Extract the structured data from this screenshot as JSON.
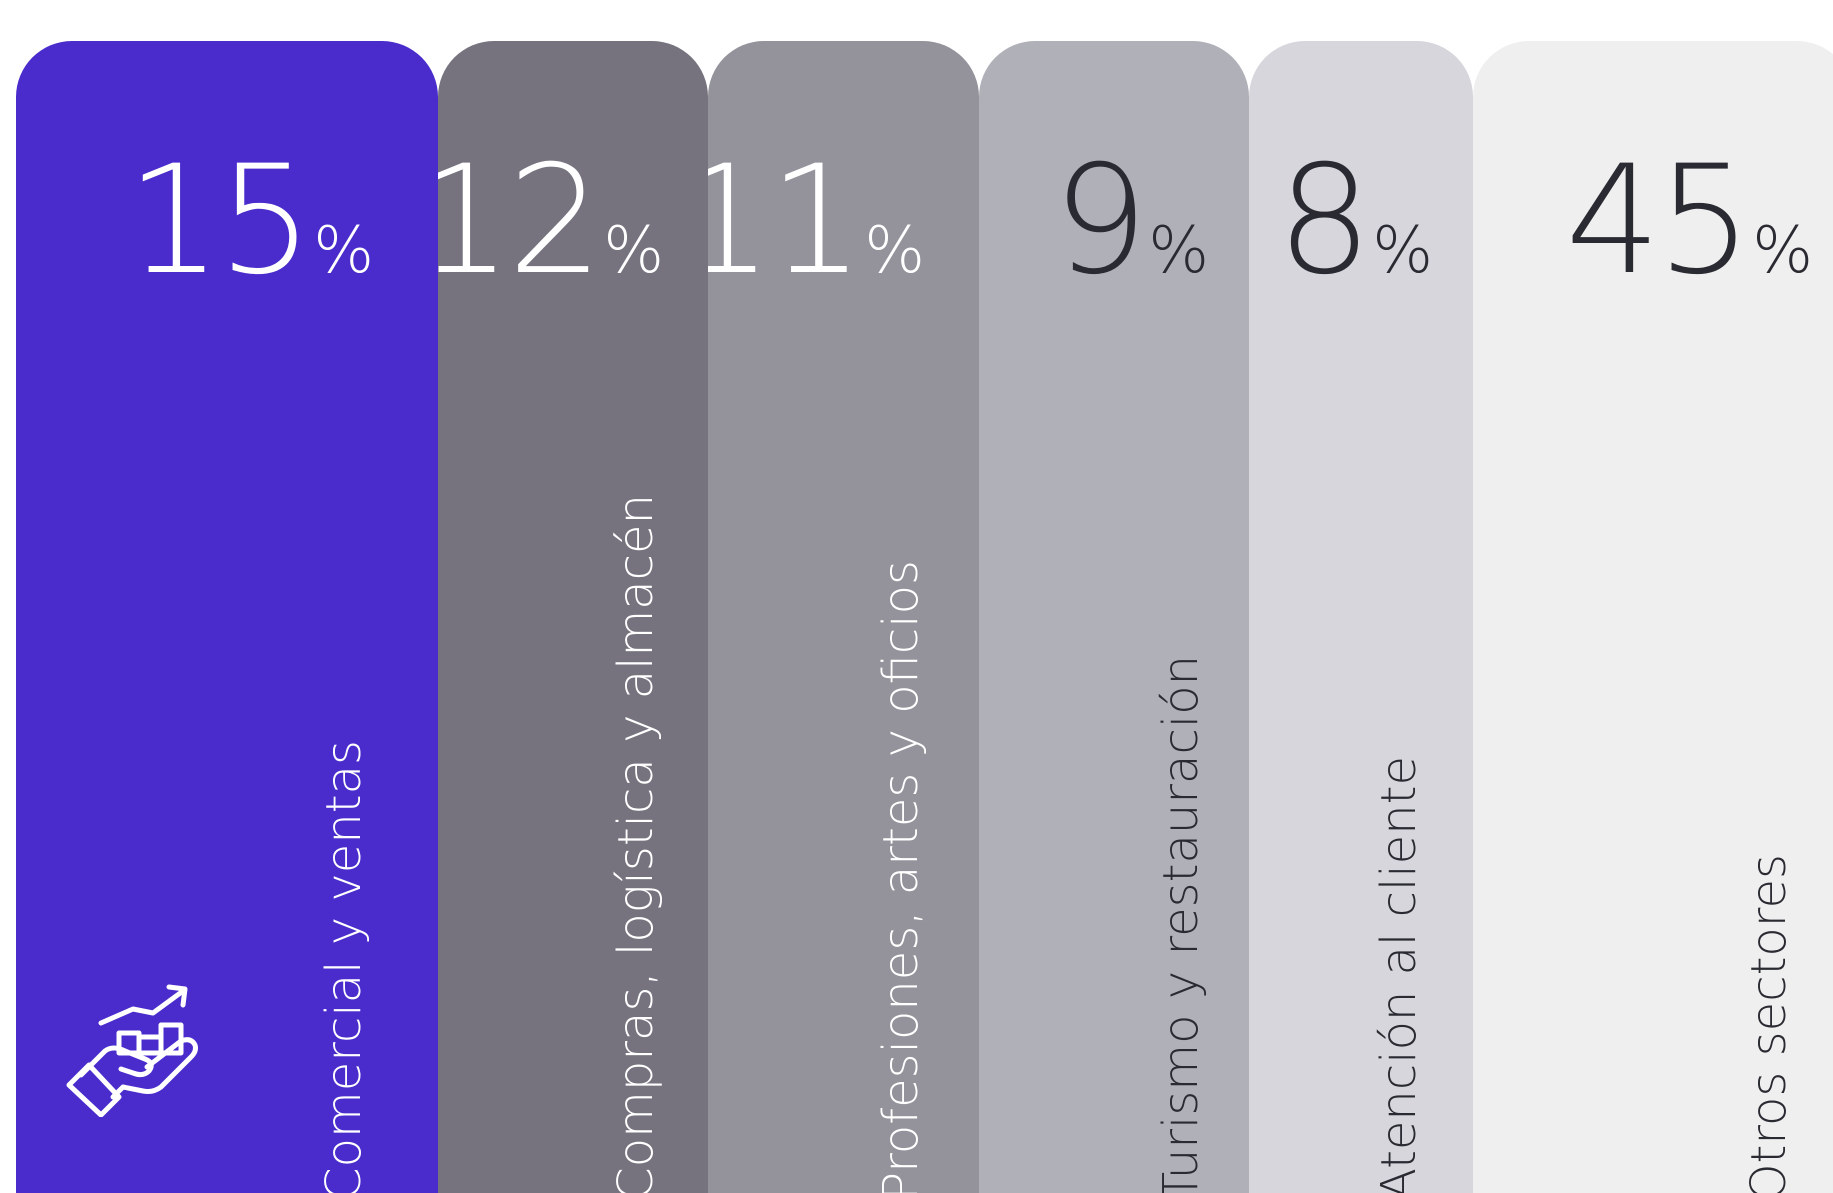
{
  "chart_data": {
    "type": "bar",
    "categories": [
      "Comercial y ventas",
      "Compras, logística y almacén",
      "Profesiones, artes y oficios",
      "Turismo y restauración",
      "Atención al cliente",
      "Otros sectores"
    ],
    "values": [
      15,
      12,
      11,
      9,
      8,
      45
    ],
    "unit": "%",
    "colors": [
      "#4a2ccc",
      "#76737f",
      "#94929a",
      "#b0b0b8",
      "#d6d6dc",
      "#efefef"
    ],
    "text_colors": [
      "#ffffff",
      "#ffffff",
      "#ffffff",
      "#2a2a32",
      "#2a2a32",
      "#2a2a32"
    ],
    "highlight_icon": "hand-holding-growth-chart-icon"
  }
}
